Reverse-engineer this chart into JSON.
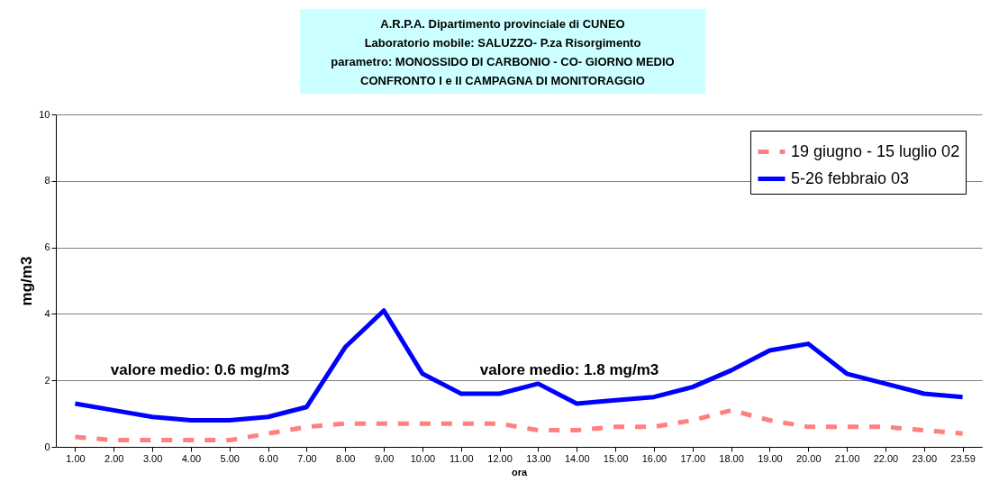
{
  "chart_data": {
    "type": "line",
    "title": "A.R.P.A. Dipartimento provinciale di CUNEO\nLaboratorio mobile: SALUZZO- P.za Risorgimento\nparametro: MONOSSIDO DI CARBONIO - CO- GIORNO MEDIO\nCONFRONTO I e II CAMPAGNA DI MONITORAGGIO",
    "xlabel": "ora",
    "ylabel": "mg/m3",
    "categories": [
      "1.00",
      "2.00",
      "3.00",
      "4.00",
      "5.00",
      "6.00",
      "7.00",
      "8.00",
      "9.00",
      "10.00",
      "11.00",
      "12.00",
      "13.00",
      "14.00",
      "15.00",
      "16.00",
      "17.00",
      "18.00",
      "19.00",
      "20.00",
      "21.00",
      "22.00",
      "23.00",
      "23.59"
    ],
    "series": [
      {
        "name": "19 giugno - 15 luglio 02",
        "color": "#ff8080",
        "line_style": "dashed",
        "values": [
          0.3,
          0.2,
          0.2,
          0.2,
          0.2,
          0.4,
          0.6,
          0.7,
          0.7,
          0.7,
          0.7,
          0.7,
          0.5,
          0.5,
          0.6,
          0.6,
          0.8,
          1.1,
          0.8,
          0.6,
          0.6,
          0.6,
          0.5,
          0.4
        ]
      },
      {
        "name": "5-26 febbraio 03",
        "color": "#0000ff",
        "line_style": "solid",
        "values": [
          1.3,
          1.1,
          0.9,
          0.8,
          0.8,
          0.9,
          1.2,
          3.0,
          4.1,
          2.2,
          1.6,
          1.6,
          1.9,
          1.3,
          1.4,
          1.5,
          1.8,
          2.3,
          2.9,
          3.1,
          2.2,
          1.9,
          1.6,
          1.5
        ]
      }
    ],
    "annotations": [
      "valore medio: 0.6 mg/m3",
      "valore medio: 1.8 mg/m3"
    ],
    "ylim": [
      0,
      10
    ],
    "yticks": [
      0,
      2,
      4,
      6,
      8,
      10
    ],
    "grid": "y",
    "legend": "top right",
    "marker": "none"
  }
}
